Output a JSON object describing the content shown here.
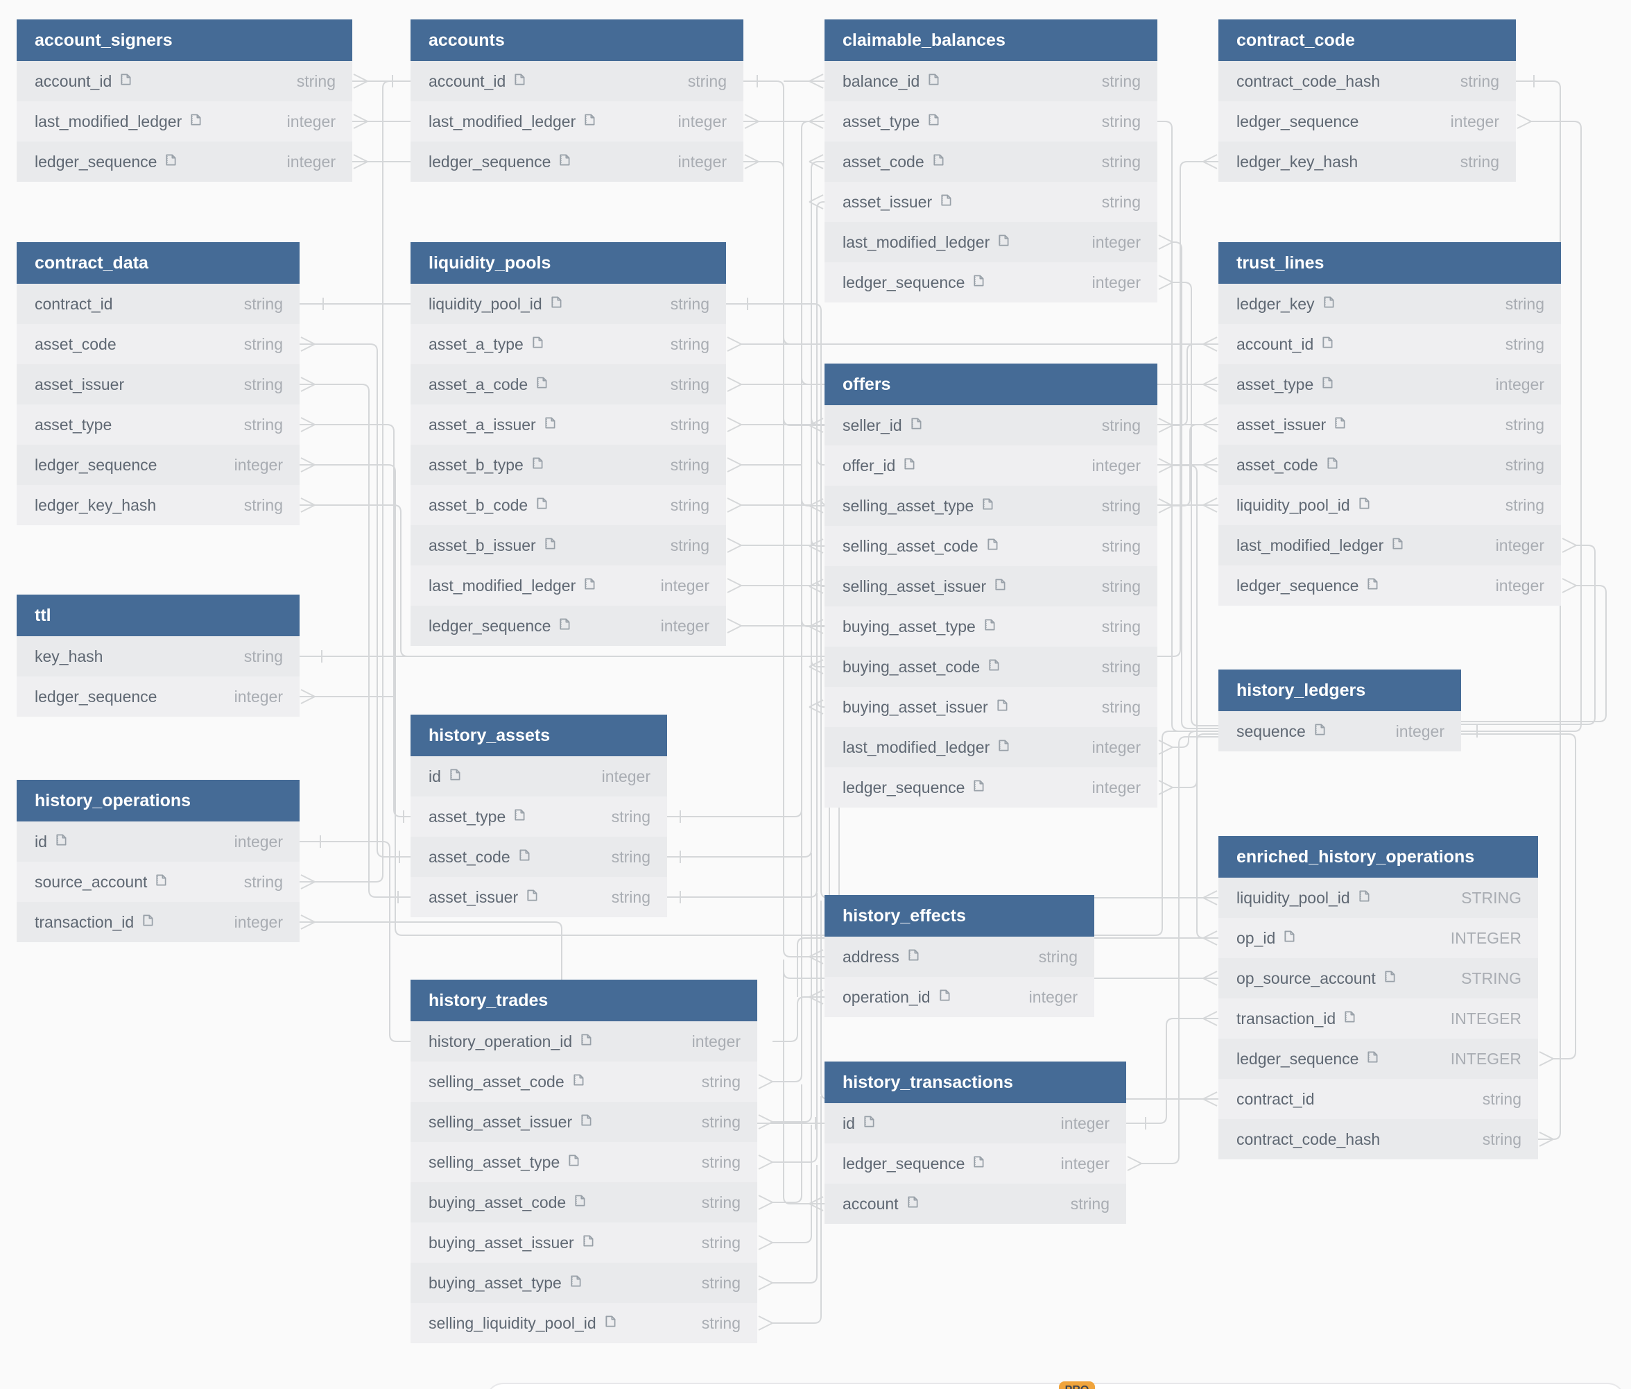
{
  "diagram": {
    "tables": [
      {
        "name": "account_signers",
        "fields": [
          {
            "name": "account_id",
            "type": "string",
            "note": true
          },
          {
            "name": "last_modified_ledger",
            "type": "integer",
            "note": true
          },
          {
            "name": "ledger_sequence",
            "type": "integer",
            "note": true
          }
        ]
      },
      {
        "name": "accounts",
        "fields": [
          {
            "name": "account_id",
            "type": "string",
            "note": true
          },
          {
            "name": "last_modified_ledger",
            "type": "integer",
            "note": true
          },
          {
            "name": "ledger_sequence",
            "type": "integer",
            "note": true
          }
        ]
      },
      {
        "name": "contract_data",
        "fields": [
          {
            "name": "contract_id",
            "type": "string",
            "note": false
          },
          {
            "name": "asset_code",
            "type": "string",
            "note": false
          },
          {
            "name": "asset_issuer",
            "type": "string",
            "note": false
          },
          {
            "name": "asset_type",
            "type": "string",
            "note": false
          },
          {
            "name": "ledger_sequence",
            "type": "integer",
            "note": false
          },
          {
            "name": "ledger_key_hash",
            "type": "string",
            "note": false
          }
        ]
      },
      {
        "name": "ttl",
        "fields": [
          {
            "name": "key_hash",
            "type": "string",
            "note": false
          },
          {
            "name": "ledger_sequence",
            "type": "integer",
            "note": false
          }
        ]
      },
      {
        "name": "history_operations",
        "fields": [
          {
            "name": "id",
            "type": "integer",
            "note": true
          },
          {
            "name": "source_account",
            "type": "string",
            "note": true
          },
          {
            "name": "transaction_id",
            "type": "integer",
            "note": true
          }
        ]
      },
      {
        "name": "liquidity_pools",
        "fields": [
          {
            "name": "liquidity_pool_id",
            "type": "string",
            "note": true
          },
          {
            "name": "asset_a_type",
            "type": "string",
            "note": true
          },
          {
            "name": "asset_a_code",
            "type": "string",
            "note": true
          },
          {
            "name": "asset_a_issuer",
            "type": "string",
            "note": true
          },
          {
            "name": "asset_b_type",
            "type": "string",
            "note": true
          },
          {
            "name": "asset_b_code",
            "type": "string",
            "note": true
          },
          {
            "name": "asset_b_issuer",
            "type": "string",
            "note": true
          },
          {
            "name": "last_modified_ledger",
            "type": "integer",
            "note": true
          },
          {
            "name": "ledger_sequence",
            "type": "integer",
            "note": true
          }
        ]
      },
      {
        "name": "history_assets",
        "fields": [
          {
            "name": "id",
            "type": "integer",
            "note": true
          },
          {
            "name": "asset_type",
            "type": "string",
            "note": true
          },
          {
            "name": "asset_code",
            "type": "string",
            "note": true
          },
          {
            "name": "asset_issuer",
            "type": "string",
            "note": true
          }
        ]
      },
      {
        "name": "history_trades",
        "fields": [
          {
            "name": "history_operation_id",
            "type": "integer",
            "note": true
          },
          {
            "name": "selling_asset_code",
            "type": "string",
            "note": true
          },
          {
            "name": "selling_asset_issuer",
            "type": "string",
            "note": true
          },
          {
            "name": "selling_asset_type",
            "type": "string",
            "note": true
          },
          {
            "name": "buying_asset_code",
            "type": "string",
            "note": true
          },
          {
            "name": "buying_asset_issuer",
            "type": "string",
            "note": true
          },
          {
            "name": "buying_asset_type",
            "type": "string",
            "note": true
          },
          {
            "name": "selling_liquidity_pool_id",
            "type": "string",
            "note": true
          }
        ]
      },
      {
        "name": "claimable_balances",
        "fields": [
          {
            "name": "balance_id",
            "type": "string",
            "note": true
          },
          {
            "name": "asset_type",
            "type": "string",
            "note": true
          },
          {
            "name": "asset_code",
            "type": "string",
            "note": true
          },
          {
            "name": "asset_issuer",
            "type": "string",
            "note": true
          },
          {
            "name": "last_modified_ledger",
            "type": "integer",
            "note": true
          },
          {
            "name": "ledger_sequence",
            "type": "integer",
            "note": true
          }
        ]
      },
      {
        "name": "offers",
        "fields": [
          {
            "name": "seller_id",
            "type": "string",
            "note": true
          },
          {
            "name": "offer_id",
            "type": "integer",
            "note": true
          },
          {
            "name": "selling_asset_type",
            "type": "string",
            "note": true
          },
          {
            "name": "selling_asset_code",
            "type": "string",
            "note": true
          },
          {
            "name": "selling_asset_issuer",
            "type": "string",
            "note": true
          },
          {
            "name": "buying_asset_type",
            "type": "string",
            "note": true
          },
          {
            "name": "buying_asset_code",
            "type": "string",
            "note": true
          },
          {
            "name": "buying_asset_issuer",
            "type": "string",
            "note": true
          },
          {
            "name": "last_modified_ledger",
            "type": "integer",
            "note": true
          },
          {
            "name": "ledger_sequence",
            "type": "integer",
            "note": true
          }
        ]
      },
      {
        "name": "history_effects",
        "fields": [
          {
            "name": "address",
            "type": "string",
            "note": true
          },
          {
            "name": "operation_id",
            "type": "integer",
            "note": true
          }
        ]
      },
      {
        "name": "history_transactions",
        "fields": [
          {
            "name": "id",
            "type": "integer",
            "note": true
          },
          {
            "name": "ledger_sequence",
            "type": "integer",
            "note": true
          },
          {
            "name": "account",
            "type": "string",
            "note": true
          }
        ]
      },
      {
        "name": "contract_code",
        "fields": [
          {
            "name": "contract_code_hash",
            "type": "string",
            "note": false
          },
          {
            "name": "ledger_sequence",
            "type": "integer",
            "note": false
          },
          {
            "name": "ledger_key_hash",
            "type": "string",
            "note": false
          }
        ]
      },
      {
        "name": "trust_lines",
        "fields": [
          {
            "name": "ledger_key",
            "type": "string",
            "note": true
          },
          {
            "name": "account_id",
            "type": "string",
            "note": true
          },
          {
            "name": "asset_type",
            "type": "integer",
            "note": true
          },
          {
            "name": "asset_issuer",
            "type": "string",
            "note": true
          },
          {
            "name": "asset_code",
            "type": "string",
            "note": true
          },
          {
            "name": "liquidity_pool_id",
            "type": "string",
            "note": true
          },
          {
            "name": "last_modified_ledger",
            "type": "integer",
            "note": true
          },
          {
            "name": "ledger_sequence",
            "type": "integer",
            "note": true
          }
        ]
      },
      {
        "name": "history_ledgers",
        "fields": [
          {
            "name": "sequence",
            "type": "integer",
            "note": true
          }
        ]
      },
      {
        "name": "enriched_history_operations",
        "fields": [
          {
            "name": "liquidity_pool_id",
            "type": "STRING",
            "note": true
          },
          {
            "name": "op_id",
            "type": "INTEGER",
            "note": true
          },
          {
            "name": "op_source_account",
            "type": "STRING",
            "note": true
          },
          {
            "name": "transaction_id",
            "type": "INTEGER",
            "note": true
          },
          {
            "name": "ledger_sequence",
            "type": "INTEGER",
            "note": true
          },
          {
            "name": "contract_id",
            "type": "string",
            "note": false
          },
          {
            "name": "contract_code_hash",
            "type": "string",
            "note": false
          }
        ]
      }
    ]
  },
  "toolbar": {
    "pro_badge": "PRO"
  },
  "colors": {
    "header": "#456b96",
    "line": "#d5d7d9",
    "badge": "#f0a43c",
    "row_bg": "#efeff1"
  }
}
